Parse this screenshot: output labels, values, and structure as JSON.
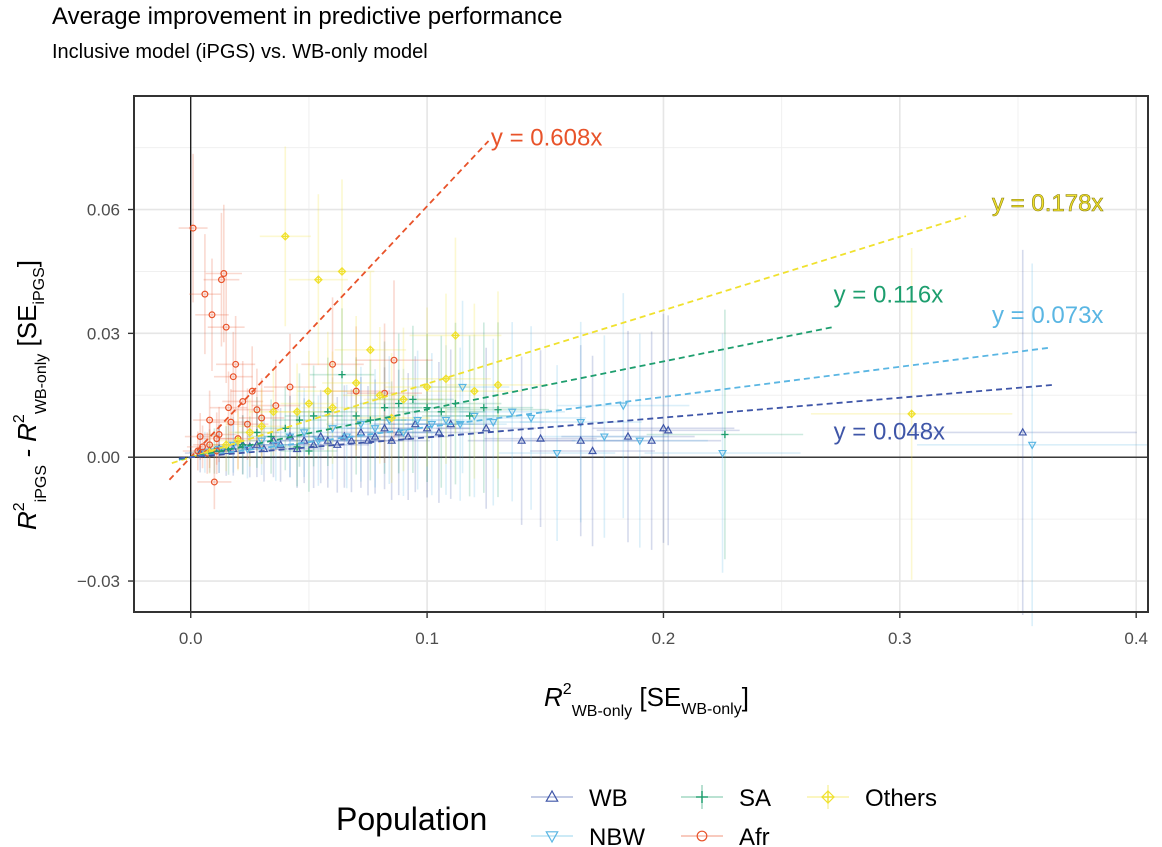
{
  "chart_data": {
    "type": "scatter",
    "title": "Average improvement in predictive performance",
    "subtitle": "Inclusive model (iPGS) vs. WB-only model",
    "xlabel": {
      "main": "R",
      "sup": "2",
      "sub": "WB-only",
      "bracket_open": " [SE",
      "bracket_sub": "WB-only",
      "bracket_close": "]"
    },
    "ylabel": {
      "main": "R",
      "sup1": "2",
      "sub1": "iPGS",
      "minus": " - R",
      "sup2": "2",
      "sub2": "WB-only",
      "bracket_open": " [SE",
      "bracket_sub": "iPGS",
      "bracket_close": "]"
    },
    "xlim": [
      -0.024,
      0.405
    ],
    "ylim": [
      -0.0375,
      0.0875
    ],
    "x_ticks": [
      {
        "value": 0.0,
        "label": "0.0"
      },
      {
        "value": 0.1,
        "label": "0.1"
      },
      {
        "value": 0.2,
        "label": "0.2"
      },
      {
        "value": 0.3,
        "label": "0.3"
      },
      {
        "value": 0.4,
        "label": "0.4"
      }
    ],
    "y_ticks": [
      {
        "value": -0.03,
        "label": "−0.03"
      },
      {
        "value": 0.0,
        "label": "0.00"
      },
      {
        "value": 0.03,
        "label": "0.03"
      },
      {
        "value": 0.06,
        "label": "0.06"
      }
    ],
    "grid": true,
    "legend": {
      "title": "Population",
      "position": "bottom",
      "entries": [
        {
          "key": "WB",
          "label": "WB",
          "color": "#3f56a8",
          "marker": "triangle-up"
        },
        {
          "key": "NBW",
          "label": "NBW",
          "color": "#5ab6e3",
          "marker": "triangle-down"
        },
        {
          "key": "SA",
          "label": "SA",
          "color": "#1d9e6e",
          "marker": "plus"
        },
        {
          "key": "Afr",
          "label": "Afr",
          "color": "#e8532a",
          "marker": "circle"
        },
        {
          "key": "Others",
          "label": "Others",
          "color": "#f0e12e",
          "marker": "diamond"
        }
      ]
    },
    "fit_lines": [
      {
        "series": "Afr",
        "slope": 0.608,
        "x_range": [
          -0.009,
          0.126
        ],
        "label": "y = 0.608x",
        "color": "#e8532a",
        "label_pos": [
          0.127,
          0.0755
        ]
      },
      {
        "series": "Others",
        "slope": 0.178,
        "x_range": [
          -0.008,
          0.328
        ],
        "label": "y = 0.178x",
        "color": "#f0e12e",
        "label_pos": [
          0.339,
          0.0597
        ]
      },
      {
        "series": "SA",
        "slope": 0.116,
        "x_range": [
          -0.005,
          0.272
        ],
        "label": "y = 0.116x",
        "color": "#1d9e6e",
        "label_pos": [
          0.272,
          0.0375
        ]
      },
      {
        "series": "NBW",
        "slope": 0.073,
        "x_range": [
          -0.005,
          0.364
        ],
        "label": "y = 0.073x",
        "color": "#5ab6e3",
        "label_pos": [
          0.339,
          0.0325
        ]
      },
      {
        "series": "WB",
        "slope": 0.048,
        "x_range": [
          -0.005,
          0.366
        ],
        "label": "y = 0.048x",
        "color": "#3f56a8",
        "label_pos": [
          0.272,
          0.0043
        ]
      }
    ],
    "series": [
      {
        "name": "WB",
        "points": [
          [
            0.004,
            0.001
          ],
          [
            0.008,
            0.0015
          ],
          [
            0.012,
            0.002
          ],
          [
            0.015,
            0.0015
          ],
          [
            0.018,
            0.002
          ],
          [
            0.022,
            0.003
          ],
          [
            0.025,
            0.0025
          ],
          [
            0.028,
            0.003
          ],
          [
            0.031,
            0.002
          ],
          [
            0.035,
            0.004
          ],
          [
            0.038,
            0.003
          ],
          [
            0.042,
            0.005
          ],
          [
            0.045,
            0.002
          ],
          [
            0.048,
            0.004
          ],
          [
            0.052,
            0.003
          ],
          [
            0.055,
            0.005
          ],
          [
            0.058,
            0.004
          ],
          [
            0.062,
            0.003
          ],
          [
            0.065,
            0.005
          ],
          [
            0.068,
            0.004
          ],
          [
            0.072,
            0.006
          ],
          [
            0.075,
            0.004
          ],
          [
            0.078,
            0.005
          ],
          [
            0.082,
            0.007
          ],
          [
            0.085,
            0.004
          ],
          [
            0.088,
            0.006
          ],
          [
            0.092,
            0.005
          ],
          [
            0.095,
            0.008
          ],
          [
            0.1,
            0.007
          ],
          [
            0.105,
            0.006
          ],
          [
            0.11,
            0.008
          ],
          [
            0.125,
            0.007
          ],
          [
            0.14,
            0.004
          ],
          [
            0.148,
            0.0045
          ],
          [
            0.165,
            0.004
          ],
          [
            0.17,
            0.0015
          ],
          [
            0.185,
            0.005
          ],
          [
            0.195,
            0.004
          ],
          [
            0.2,
            0.007
          ],
          [
            0.202,
            0.0065
          ],
          [
            0.352,
            0.006
          ]
        ]
      },
      {
        "name": "NBW",
        "points": [
          [
            0.006,
            0.0012
          ],
          [
            0.012,
            0.002
          ],
          [
            0.018,
            0.003
          ],
          [
            0.024,
            0.002
          ],
          [
            0.03,
            0.004
          ],
          [
            0.036,
            0.003
          ],
          [
            0.042,
            0.005
          ],
          [
            0.048,
            0.006
          ],
          [
            0.054,
            0.004
          ],
          [
            0.06,
            0.007
          ],
          [
            0.066,
            0.005
          ],
          [
            0.072,
            0.008
          ],
          [
            0.078,
            0.007
          ],
          [
            0.084,
            0.009
          ],
          [
            0.09,
            0.006
          ],
          [
            0.096,
            0.009
          ],
          [
            0.102,
            0.008
          ],
          [
            0.108,
            0.009
          ],
          [
            0.114,
            0.008
          ],
          [
            0.12,
            0.01
          ],
          [
            0.128,
            0.0085
          ],
          [
            0.136,
            0.011
          ],
          [
            0.144,
            0.0095
          ],
          [
            0.155,
            0.001
          ],
          [
            0.165,
            0.0085
          ],
          [
            0.175,
            0.005
          ],
          [
            0.183,
            0.0125
          ],
          [
            0.19,
            0.004
          ],
          [
            0.225,
            0.001
          ],
          [
            0.356,
            0.003
          ],
          [
            0.115,
            0.017
          ]
        ]
      },
      {
        "name": "SA",
        "points": [
          [
            0.01,
            0.0015
          ],
          [
            0.016,
            0.002
          ],
          [
            0.022,
            0.003
          ],
          [
            0.028,
            0.006
          ],
          [
            0.034,
            0.005
          ],
          [
            0.04,
            0.007
          ],
          [
            0.046,
            0.009
          ],
          [
            0.052,
            0.01
          ],
          [
            0.058,
            0.011
          ],
          [
            0.064,
            0.02
          ],
          [
            0.07,
            0.01
          ],
          [
            0.076,
            0.009
          ],
          [
            0.082,
            0.012
          ],
          [
            0.088,
            0.013
          ],
          [
            0.094,
            0.014
          ],
          [
            0.1,
            0.012
          ],
          [
            0.106,
            0.011
          ],
          [
            0.112,
            0.013
          ],
          [
            0.118,
            0.01
          ],
          [
            0.124,
            0.012
          ],
          [
            0.13,
            0.0115
          ],
          [
            0.045,
            0.0025
          ],
          [
            0.05,
            0.0015
          ],
          [
            0.226,
            0.0055
          ]
        ]
      },
      {
        "name": "Afr",
        "points": [
          [
            0.001,
            0.0555
          ],
          [
            0.004,
            0.005
          ],
          [
            0.006,
            0.0395
          ],
          [
            0.007,
            0.001
          ],
          [
            0.008,
            0.009
          ],
          [
            0.009,
            0.0345
          ],
          [
            0.01,
            -0.006
          ],
          [
            0.011,
            0.0015
          ],
          [
            0.012,
            0.0055
          ],
          [
            0.013,
            0.043
          ],
          [
            0.014,
            0.0445
          ],
          [
            0.015,
            0.0315
          ],
          [
            0.016,
            0.012
          ],
          [
            0.017,
            0.0085
          ],
          [
            0.018,
            0.0195
          ],
          [
            0.019,
            0.0225
          ],
          [
            0.02,
            0.0045
          ],
          [
            0.022,
            0.0135
          ],
          [
            0.024,
            0.008
          ],
          [
            0.026,
            0.016
          ],
          [
            0.028,
            0.0115
          ],
          [
            0.03,
            0.0095
          ],
          [
            0.036,
            0.0125
          ],
          [
            0.042,
            0.017
          ],
          [
            0.06,
            0.0225
          ],
          [
            0.07,
            0.016
          ],
          [
            0.082,
            0.0155
          ],
          [
            0.086,
            0.0235
          ],
          [
            0.003,
            0.0015
          ],
          [
            0.005,
            0.0025
          ],
          [
            0.008,
            0.003
          ],
          [
            0.011,
            0.0045
          ]
        ]
      },
      {
        "name": "Others",
        "points": [
          [
            0.008,
            0.0012
          ],
          [
            0.015,
            0.003
          ],
          [
            0.02,
            0.004
          ],
          [
            0.025,
            0.006
          ],
          [
            0.03,
            0.0075
          ],
          [
            0.04,
            0.0535
          ],
          [
            0.045,
            0.011
          ],
          [
            0.05,
            0.013
          ],
          [
            0.054,
            0.043
          ],
          [
            0.058,
            0.016
          ],
          [
            0.064,
            0.045
          ],
          [
            0.07,
            0.018
          ],
          [
            0.076,
            0.026
          ],
          [
            0.08,
            0.015
          ],
          [
            0.085,
            0.0095
          ],
          [
            0.09,
            0.014
          ],
          [
            0.1,
            0.017
          ],
          [
            0.108,
            0.019
          ],
          [
            0.112,
            0.0295
          ],
          [
            0.12,
            0.016
          ],
          [
            0.13,
            0.0175
          ],
          [
            0.305,
            0.0105
          ],
          [
            0.035,
            0.011
          ],
          [
            0.06,
            0.012
          ]
        ]
      }
    ]
  }
}
